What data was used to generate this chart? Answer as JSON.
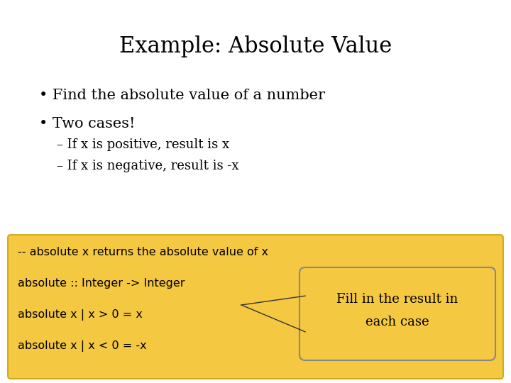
{
  "title": "Example: Absolute Value",
  "title_fontsize": 22,
  "title_color": "#000000",
  "background_color": "#ffffff",
  "bullet1": "Find the absolute value of a number",
  "bullet2": "Two cases!",
  "sub1": "– If x is positive, result is x",
  "sub2": "– If x is negative, result is -x",
  "code_lines": [
    "-- absolute x returns the absolute value of x",
    "absolute :: Integer -> Integer",
    "absolute x | x > 0 = x",
    "absolute x | x < 0 = -x"
  ],
  "code_box_color": "#F5C842",
  "code_box_edge_color": "#C8A000",
  "callout_text_line1": "Fill in the result in",
  "callout_text_line2": "each case",
  "callout_box_color": "#F5C842",
  "callout_box_edge_color": "#888888",
  "bullet_fontsize": 15,
  "sub_fontsize": 13,
  "code_fontsize": 11.5,
  "callout_fontsize": 13
}
